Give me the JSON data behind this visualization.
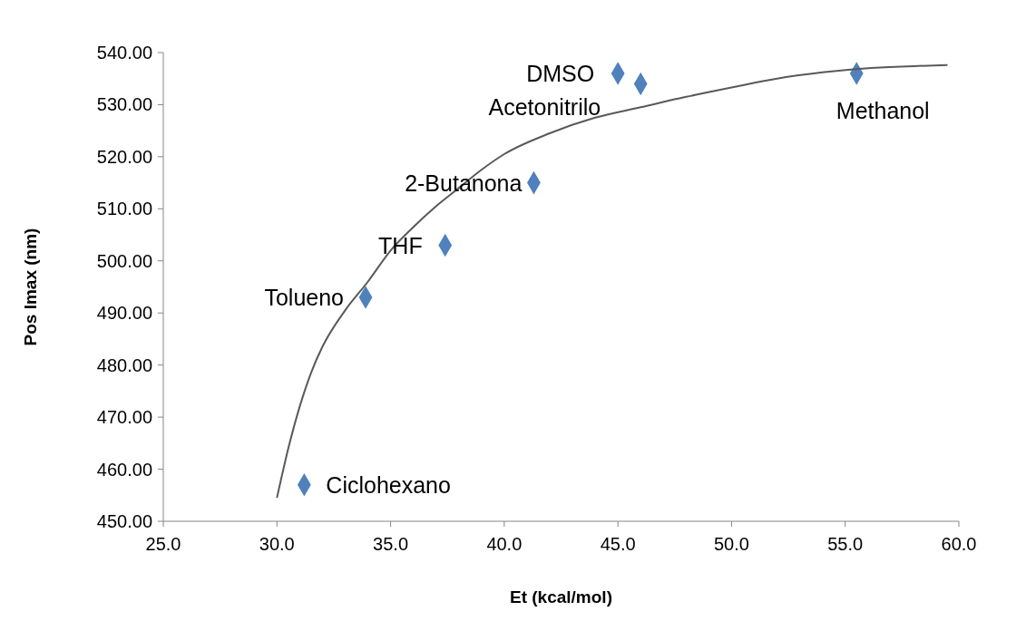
{
  "chart_data": {
    "type": "scatter",
    "xlabel": "Et (kcal/mol)",
    "ylabel": "Pos lmax (nm)",
    "xlim": [
      25,
      60
    ],
    "ylim": [
      450,
      540
    ],
    "xticks": [
      {
        "value": 25,
        "label": "25.0"
      },
      {
        "value": 30,
        "label": "30.0"
      },
      {
        "value": 35,
        "label": "35.0"
      },
      {
        "value": 40,
        "label": "40.0"
      },
      {
        "value": 45,
        "label": "45.0"
      },
      {
        "value": 50,
        "label": "50.0"
      },
      {
        "value": 55,
        "label": "55.0"
      },
      {
        "value": 60,
        "label": "60.0"
      }
    ],
    "yticks": [
      {
        "value": 450,
        "label": "450.00"
      },
      {
        "value": 460,
        "label": "460.00"
      },
      {
        "value": 470,
        "label": "470.00"
      },
      {
        "value": 480,
        "label": "480.00"
      },
      {
        "value": 490,
        "label": "490.00"
      },
      {
        "value": 500,
        "label": "500.00"
      },
      {
        "value": 510,
        "label": "510.00"
      },
      {
        "value": 520,
        "label": "520.00"
      },
      {
        "value": 530,
        "label": "530.00"
      },
      {
        "value": 540,
        "label": "540.00"
      }
    ],
    "grid": false,
    "series": [
      {
        "color": "#4f81bd",
        "marker": "diamond",
        "x": [
          31.2,
          33.9,
          37.4,
          41.3,
          45.0,
          46.0,
          55.5
        ],
        "values": [
          457,
          493,
          503,
          515,
          536,
          534,
          536
        ]
      },
      {
        "type": "line",
        "color": "#595959",
        "marker": "none",
        "line_style": "solid",
        "x": [
          30,
          30.5,
          31,
          31.5,
          32,
          33,
          34,
          35,
          36,
          37,
          38,
          39,
          40,
          42,
          44,
          46,
          48,
          50,
          52,
          54,
          56,
          58,
          59.5
        ],
        "values": [
          454.5,
          464,
          472,
          478.5,
          483.5,
          490.5,
          496,
          502,
          506.5,
          510.5,
          514,
          517.5,
          520.5,
          524.5,
          527.5,
          529.5,
          531.5,
          533.3,
          535,
          536.2,
          537,
          537.4,
          537.6
        ]
      }
    ],
    "annotations": [
      {
        "text": "DMSO",
        "x": 45.0,
        "y": 536
      },
      {
        "text": "Acetonitrilo",
        "x": 46.0,
        "y": 534
      },
      {
        "text": "Methanol",
        "x": 55.5,
        "y": 536
      },
      {
        "text": "2-Butanona",
        "x": 41.3,
        "y": 515
      },
      {
        "text": "THF",
        "x": 37.4,
        "y": 503
      },
      {
        "text": "Tolueno",
        "x": 33.9,
        "y": 493
      },
      {
        "text": "Ciclohexano",
        "x": 31.2,
        "y": 457
      }
    ]
  }
}
